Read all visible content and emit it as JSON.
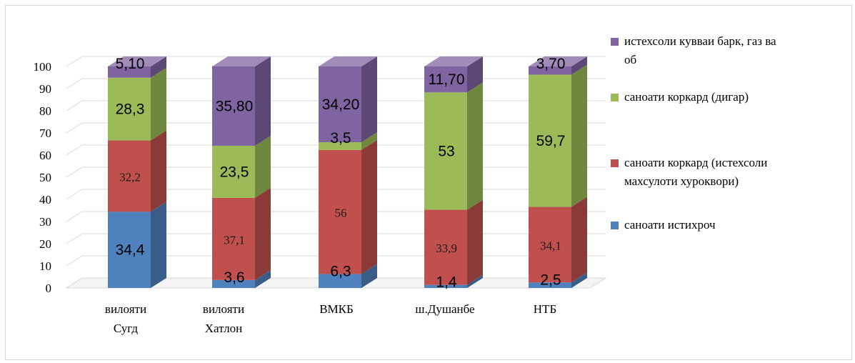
{
  "chart_data": {
    "type": "bar",
    "stacked": true,
    "three_d": true,
    "categories": [
      [
        "вилояти",
        "Сугд"
      ],
      [
        "вилояти",
        "Хатлон"
      ],
      [
        "ВМКБ"
      ],
      [
        "ш.Душанбе"
      ],
      [
        "НТБ"
      ]
    ],
    "yticks": [
      "0",
      "10",
      "20",
      "30",
      "40",
      "50",
      "60",
      "70",
      "80",
      "90",
      "100"
    ],
    "ylim": [
      0,
      100
    ],
    "grid": true,
    "legend_position": "right",
    "series": [
      {
        "name": "саноати истихроч",
        "color": "#4f81bd",
        "values": [
          34.4,
          3.6,
          6.3,
          1.4,
          2.5
        ],
        "labels": [
          "34,4",
          "3,6",
          "6,3",
          "1,4",
          "2,5"
        ]
      },
      {
        "name": "саноати коркард (истехсоли махсулоти хуроквори)",
        "color": "#c0504d",
        "values": [
          32.2,
          37.1,
          56,
          33.9,
          34.1
        ],
        "labels": [
          "32,2",
          "37,1",
          "56",
          "33,9",
          "34,1"
        ]
      },
      {
        "name": "саноати коркард (дигар)",
        "color": "#9bbb59",
        "values": [
          28.3,
          23.5,
          3.5,
          53,
          59.7
        ],
        "labels": [
          "28,3",
          "23,5",
          "3,5",
          "53",
          "59,7"
        ]
      },
      {
        "name": "истехсоли кувваи барк, газ ва об",
        "color": "#8064a2",
        "values": [
          5.1,
          35.8,
          34.2,
          11.7,
          3.7
        ],
        "labels": [
          "5,10",
          "35,80",
          "34,20",
          "11,70",
          "3,70"
        ]
      }
    ],
    "legend": [
      {
        "lines": [
          "истехсоли кувваи барк, газ ва",
          "об"
        ],
        "series": 3
      },
      {
        "lines": [
          "саноати коркард (дигар)"
        ],
        "series": 2
      },
      {
        "lines": [
          "саноати коркард (истехсоли",
          "махсулоти хуроквори)"
        ],
        "series": 1
      },
      {
        "lines": [
          "саноати истихроч"
        ],
        "series": 0
      }
    ]
  }
}
